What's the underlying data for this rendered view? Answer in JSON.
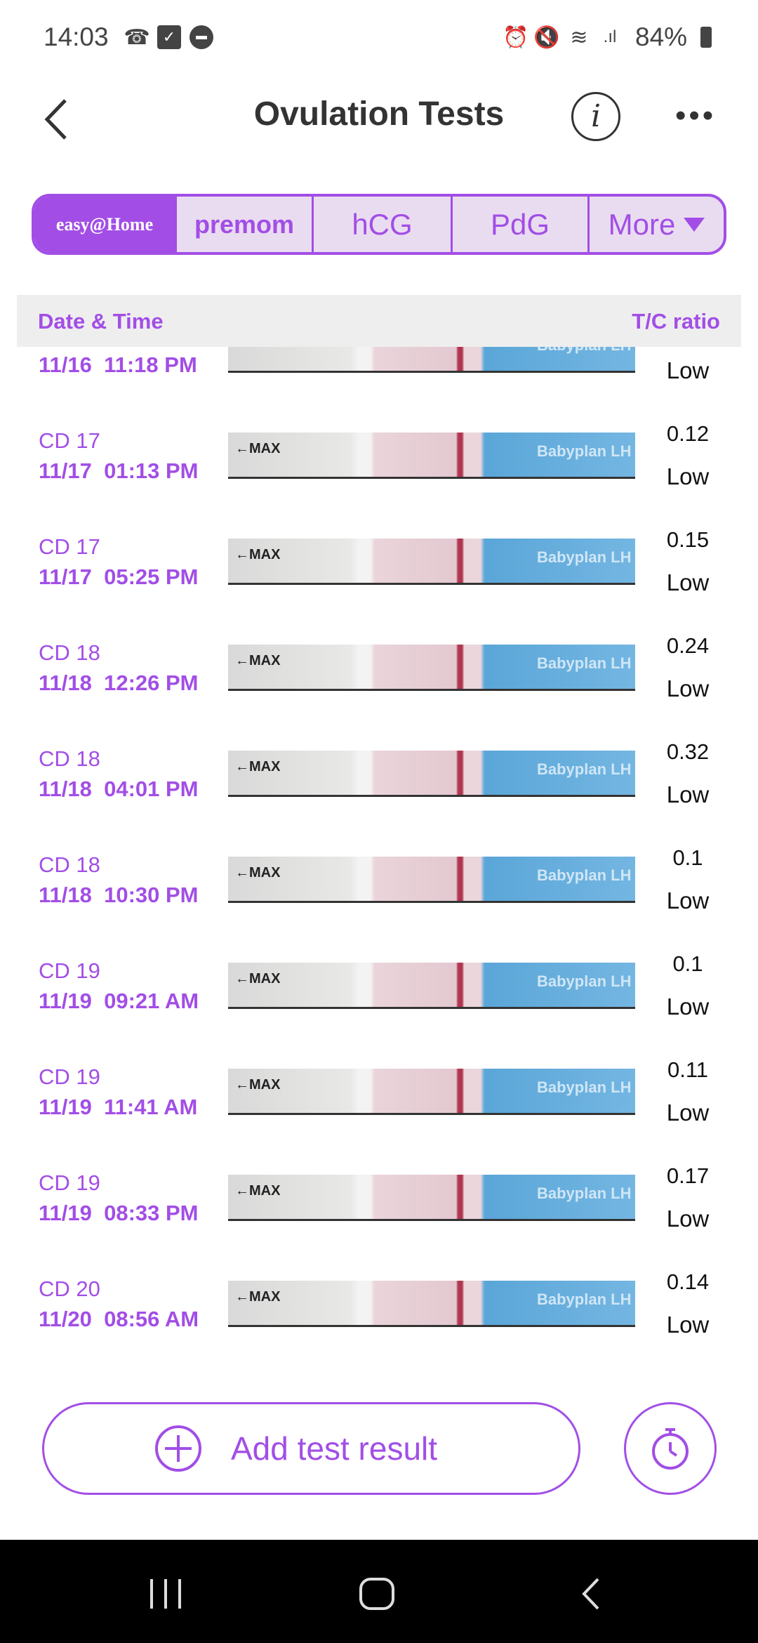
{
  "status_bar": {
    "time": "14:03",
    "battery": "84%",
    "icons_left": [
      "missed-call-icon",
      "checkbox-icon",
      "dnd-icon"
    ],
    "icons_right": [
      "alarm-icon",
      "mute-icon",
      "wifi-icon",
      "signal-icon",
      "battery-icon"
    ]
  },
  "header": {
    "title": "Ovulation Tests",
    "info_label": "i"
  },
  "tabs": [
    {
      "label": "easy@Home",
      "selected": true
    },
    {
      "label": "premom"
    },
    {
      "label": "hCG"
    },
    {
      "label": "PdG"
    },
    {
      "label": "More"
    }
  ],
  "table": {
    "col_date": "Date & Time",
    "col_ratio": "T/C ratio"
  },
  "strip": {
    "max_label": "←MAX",
    "brand_label": "Babyplan LH"
  },
  "rows": [
    {
      "cd": "",
      "datetime": "11/16  11:18 PM",
      "ratio": "",
      "level": "Low"
    },
    {
      "cd": "CD 17",
      "datetime": "11/17  01:13 PM",
      "ratio": "0.12",
      "level": "Low"
    },
    {
      "cd": "CD 17",
      "datetime": "11/17  05:25 PM",
      "ratio": "0.15",
      "level": "Low"
    },
    {
      "cd": "CD 18",
      "datetime": "11/18  12:26 PM",
      "ratio": "0.24",
      "level": "Low"
    },
    {
      "cd": "CD 18",
      "datetime": "11/18  04:01 PM",
      "ratio": "0.32",
      "level": "Low"
    },
    {
      "cd": "CD 18",
      "datetime": "11/18  10:30 PM",
      "ratio": "0.1",
      "level": "Low"
    },
    {
      "cd": "CD 19",
      "datetime": "11/19  09:21 AM",
      "ratio": "0.1",
      "level": "Low"
    },
    {
      "cd": "CD 19",
      "datetime": "11/19  11:41 AM",
      "ratio": "0.11",
      "level": "Low"
    },
    {
      "cd": "CD 19",
      "datetime": "11/19  08:33 PM",
      "ratio": "0.17",
      "level": "Low"
    },
    {
      "cd": "CD 20",
      "datetime": "11/20  08:56 AM",
      "ratio": "0.14",
      "level": "Low"
    }
  ],
  "actions": {
    "add_label": "Add test result"
  },
  "colors": {
    "accent": "#a24ee6",
    "header_bg": "#eeeeee",
    "tab_bg": "#e9dcf0"
  }
}
